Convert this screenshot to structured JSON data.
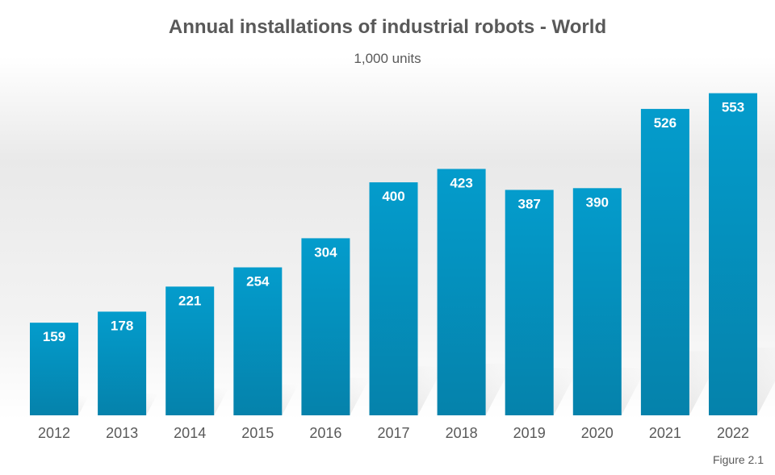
{
  "chart_data": {
    "type": "bar",
    "title": "Annual installations of industrial robots - World",
    "subtitle": "1,000 units",
    "xlabel": "",
    "ylabel": "",
    "categories": [
      "2012",
      "2013",
      "2014",
      "2015",
      "2016",
      "2017",
      "2018",
      "2019",
      "2020",
      "2021",
      "2022"
    ],
    "values": [
      159,
      178,
      221,
      254,
      304,
      400,
      423,
      387,
      390,
      526,
      553
    ],
    "data_labels": [
      "159",
      "178",
      "221",
      "254",
      "304",
      "400",
      "423",
      "387",
      "390",
      "526",
      "553"
    ],
    "ylim": [
      0,
      600
    ],
    "grid": false,
    "legend": "none",
    "bar_color": "#0395c6"
  },
  "figure_label": "Figure 2.1"
}
